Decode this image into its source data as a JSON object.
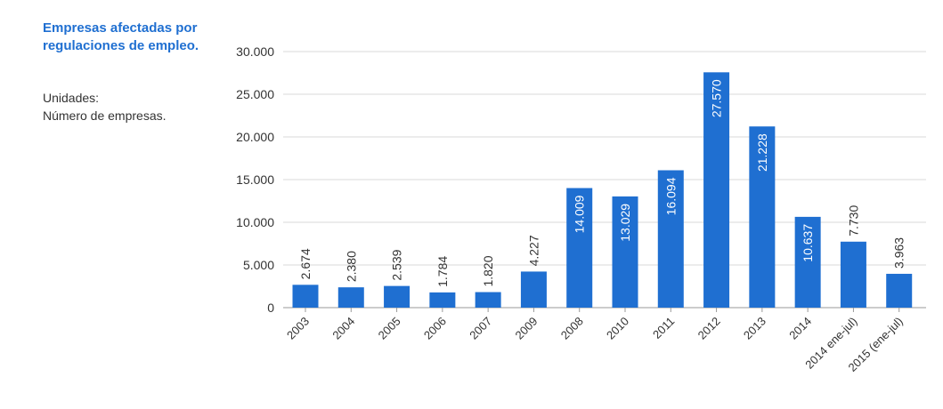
{
  "sidebar": {
    "title": "Empresas afectadas por regulaciones de empleo.",
    "units_label": "Unidades:",
    "units_value": "Número de empresas."
  },
  "colors": {
    "bar": "#1f6fd1",
    "grid": "#d9d9d9",
    "axis": "#999999",
    "title": "#1f6fd1"
  },
  "chart_data": {
    "type": "bar",
    "title": "Empresas afectadas por regulaciones de empleo.",
    "xlabel": "",
    "ylabel": "",
    "ylim": [
      0,
      30000
    ],
    "yticks": [
      0,
      5000,
      10000,
      15000,
      20000,
      25000,
      30000
    ],
    "ytick_labels": [
      "0",
      "5.000",
      "10.000",
      "15.000",
      "20.000",
      "25.000",
      "30.000"
    ],
    "grid": true,
    "categories": [
      "2003",
      "2004",
      "2005",
      "2006",
      "2007",
      "2009",
      "2008",
      "2010",
      "2011",
      "2012",
      "2013",
      "2014",
      "2014 ene-jul)",
      "2015 (ene-jul)"
    ],
    "values": [
      2674,
      2380,
      2539,
      1784,
      1820,
      4227,
      14009,
      13029,
      16094,
      27570,
      21228,
      10637,
      7730,
      3963
    ],
    "value_labels": [
      "2.674",
      "2.380",
      "2.539",
      "1.784",
      "1.820",
      "4.227",
      "14.009",
      "13.029",
      "16.094",
      "27.570",
      "21.228",
      "10.637",
      "7.730",
      "3.963"
    ]
  }
}
